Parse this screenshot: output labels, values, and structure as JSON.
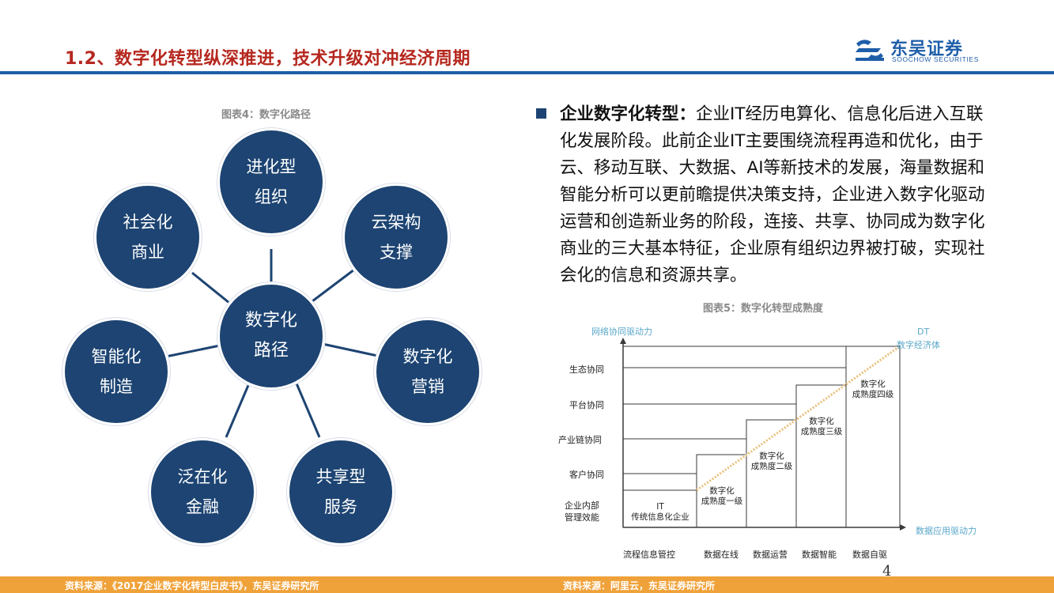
{
  "header": {
    "title": "1.2、数字化转型纵深推进，技术升级对冲经济周期",
    "logo_cn": "东吴证券",
    "logo_en": "SOOCHOW SECURITIES"
  },
  "figure4": {
    "caption": "图表4：数字化路径",
    "center": "数字化\n路径",
    "nodes": [
      "进化型\n组织",
      "云架构\n支撑",
      "数字化\n营销",
      "共享型\n服务",
      "泛在化\n金融",
      "智能化\n制造",
      "社会化\n商业"
    ]
  },
  "bullet": {
    "lead": "企业数字化转型：",
    "text": "企业IT经历电算化、信息化后进入互联化发展阶段。此前企业IT主要围绕流程再造和优化，由于云、移动互联、大数据、AI等新技术的发展，海量数据和智能分析可以更前瞻提供决策支持，企业进入数字化驱动运营和创造新业务的阶段，连接、共享、协同成为数字化商业的三大基本特征，企业原有组织边界被打破，实现社会化的信息和资源共享。"
  },
  "figure5": {
    "caption": "图表5：数字化转型成熟度",
    "y_axis_title": "网络协同驱动力",
    "x_axis_title": "数据应用驱动力",
    "corner_label_1": "DT",
    "corner_label_2": "数字经济体",
    "y_levels": [
      "企业内部\n管理效能",
      "客户协同",
      "产业链协同",
      "平台协同",
      "生态协同"
    ],
    "x_levels": [
      "流程信息管控",
      "数据在线",
      "数据运营",
      "数据智能",
      "数据自驱"
    ],
    "stages": [
      "IT\n传统信息化企业",
      "数字化\n成熟度一级",
      "数字化\n成熟度二级",
      "数字化\n成熟度三级",
      "数字化\n成熟度四级"
    ]
  },
  "footer": {
    "source_left": "资料来源：《2017企业数字化转型白皮书》，东吴证券研究所",
    "source_right": "资料来源：阿里云，东吴证券研究所",
    "page_number": "4"
  }
}
